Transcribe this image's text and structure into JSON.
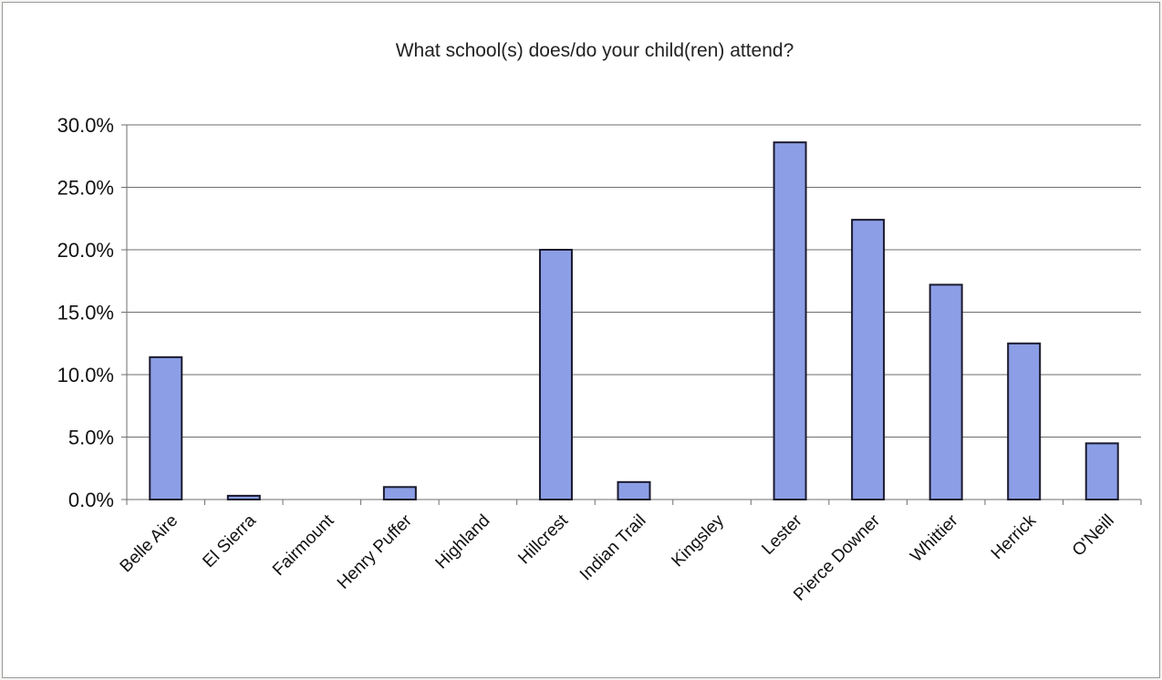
{
  "chart_data": {
    "type": "bar",
    "title": "What school(s) does/do your child(ren) attend?",
    "xlabel": "",
    "ylabel": "",
    "categories": [
      "Belle Aire",
      "El Sierra",
      "Fairmount",
      "Henry Puffer",
      "Highland",
      "Hillcrest",
      "Indian Trail",
      "Kingsley",
      "Lester",
      "Pierce Downer",
      "Whittier",
      "Herrick",
      "O'Neill"
    ],
    "values": [
      11.4,
      0.3,
      0.0,
      1.0,
      0.0,
      20.0,
      1.4,
      0.0,
      28.6,
      22.4,
      17.2,
      12.5,
      4.5
    ],
    "ylim": [
      0,
      30
    ],
    "yticks": [
      "0.0%",
      "5.0%",
      "10.0%",
      "15.0%",
      "20.0%",
      "25.0%",
      "30.0%"
    ],
    "ytick_values": [
      0,
      5,
      10,
      15,
      20,
      25,
      30
    ],
    "grid": true,
    "legend": "none",
    "colors": {
      "bar_fill": "#8c9ee6",
      "bar_stroke": "#1a1a2e",
      "grid": "#6e6e6e",
      "axis": "#6e6e6e"
    }
  }
}
